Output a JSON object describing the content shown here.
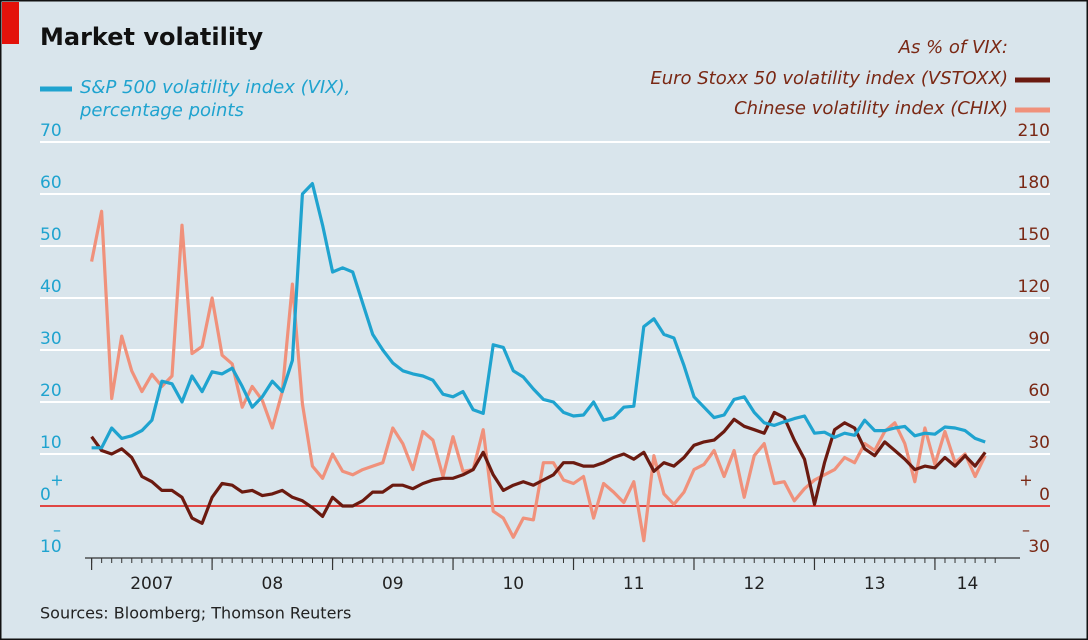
{
  "chart_data": {
    "type": "line",
    "title": "Market volatility",
    "right_axis_title": "As % of VIX:",
    "source": "Sources: Bloomberg; Thomson Reuters",
    "axis_signs": {
      "plus": "+",
      "minus": "–"
    },
    "x": [
      2007,
      2007.083,
      2007.167,
      2007.25,
      2007.333,
      2007.417,
      2007.5,
      2007.583,
      2007.667,
      2007.75,
      2007.833,
      2007.917,
      2008,
      2008.083,
      2008.167,
      2008.25,
      2008.333,
      2008.417,
      2008.5,
      2008.583,
      2008.667,
      2008.75,
      2008.833,
      2008.917,
      2009,
      2009.083,
      2009.167,
      2009.25,
      2009.333,
      2009.417,
      2009.5,
      2009.583,
      2009.667,
      2009.75,
      2009.833,
      2009.917,
      2010,
      2010.083,
      2010.167,
      2010.25,
      2010.333,
      2010.417,
      2010.5,
      2010.583,
      2010.667,
      2010.75,
      2010.833,
      2010.917,
      2011,
      2011.083,
      2011.167,
      2011.25,
      2011.333,
      2011.417,
      2011.5,
      2011.583,
      2011.667,
      2011.75,
      2011.833,
      2011.917,
      2012,
      2012.083,
      2012.167,
      2012.25,
      2012.333,
      2012.417,
      2012.5,
      2012.583,
      2012.667,
      2012.75,
      2012.833,
      2012.917,
      2013,
      2013.083,
      2013.167,
      2013.25,
      2013.333,
      2013.417,
      2013.5,
      2013.583,
      2013.667,
      2013.75,
      2013.833,
      2013.917,
      2014,
      2014.083,
      2014.167,
      2014.25,
      2014.333,
      2014.417
    ],
    "series": [
      {
        "name": "S&P 500 volatility index (VIX), percentage points",
        "color": "#1fa3cf",
        "axis": "y",
        "values": [
          11.2,
          11.2,
          15,
          13,
          13.5,
          14.5,
          16.5,
          24,
          23.5,
          20,
          25,
          22,
          25.8,
          25.4,
          26.5,
          23,
          19,
          21,
          24,
          22,
          28,
          60,
          62,
          54,
          45,
          45.8,
          45,
          39,
          33,
          30,
          27.5,
          26,
          25.4,
          25,
          24.2,
          21.5,
          21,
          22,
          18.5,
          17.8,
          31,
          30.5,
          26,
          24.8,
          22.5,
          20.5,
          20,
          18,
          17.3,
          17.5,
          20,
          16.5,
          17,
          19,
          19.2,
          34.5,
          36,
          33,
          32.3,
          27,
          21,
          19,
          17,
          17.5,
          20.5,
          21,
          18,
          16,
          15.5,
          16.2,
          16.8,
          17.3,
          14,
          14.2,
          13.2,
          14,
          13.6,
          16.5,
          14.5,
          14.5,
          15,
          15.3,
          13.5,
          14,
          13.8,
          15.2,
          15,
          14.5,
          13,
          12.3
        ]
      },
      {
        "name": "Euro Stoxx 50 volatility index (VSTOXX)",
        "color": "#6b1a10",
        "axis": "y2",
        "values": [
          40,
          32,
          30,
          33,
          28,
          17,
          14,
          9,
          9,
          5,
          -7,
          -10,
          5,
          13,
          12,
          8,
          9,
          6,
          7,
          9,
          5,
          3,
          -1,
          -6,
          5,
          0,
          0,
          3,
          8,
          8,
          12,
          12,
          10,
          13,
          15,
          16,
          16,
          18,
          21,
          31,
          18,
          9,
          12,
          14,
          12,
          15,
          18,
          25,
          25,
          23,
          23,
          25,
          28,
          30,
          27,
          31,
          20,
          25,
          23,
          28,
          35,
          37,
          38,
          43,
          50,
          46,
          44,
          42,
          54,
          51,
          38,
          27,
          1,
          25,
          44,
          48,
          45,
          33,
          29,
          37,
          32,
          27,
          21,
          23,
          22,
          28,
          23,
          29,
          23,
          31
        ]
      },
      {
        "name": "Chinese volatility index (CHIX)",
        "color": "#f0917b",
        "axis": "y2",
        "values": [
          141,
          170,
          62,
          98,
          78,
          66,
          76,
          69,
          75,
          162,
          88,
          92,
          120,
          87,
          82,
          57,
          69,
          61,
          45,
          66,
          128,
          59,
          23,
          16,
          30,
          20,
          18,
          21,
          23,
          25,
          45,
          36,
          21,
          43,
          38,
          17,
          40,
          20,
          21,
          44,
          -3,
          -7,
          -18,
          -7,
          -8,
          25,
          25,
          15,
          13,
          17,
          -7,
          13,
          8,
          2,
          14,
          -20,
          29,
          7,
          1,
          8,
          21,
          24,
          32,
          17,
          32,
          5,
          29,
          36,
          13,
          14,
          3,
          10,
          15,
          18,
          21,
          28,
          25,
          36,
          32,
          43,
          48,
          36,
          14,
          45,
          24,
          43,
          25,
          30,
          17,
          29
        ]
      }
    ],
    "xlim": [
      2006.97,
      2014.54
    ],
    "xticks": [
      {
        "value": 2007,
        "label": "2007"
      },
      {
        "value": 2008,
        "label": "08"
      },
      {
        "value": 2009,
        "label": "09"
      },
      {
        "value": 2010,
        "label": "10"
      },
      {
        "value": 2011,
        "label": "11"
      },
      {
        "value": 2012,
        "label": "12"
      },
      {
        "value": 2013,
        "label": "13"
      },
      {
        "value": 2014,
        "label": "14"
      }
    ],
    "ylim": [
      -10,
      70
    ],
    "yticks": [
      {
        "value": -10,
        "label": "10"
      },
      0,
      10,
      20,
      30,
      40,
      50,
      60,
      70
    ],
    "y2lim": [
      -30,
      210
    ],
    "y2ticks": [
      {
        "value": -30,
        "label": "30"
      },
      0,
      30,
      60,
      90,
      120,
      150,
      180,
      210
    ],
    "grid": true
  }
}
